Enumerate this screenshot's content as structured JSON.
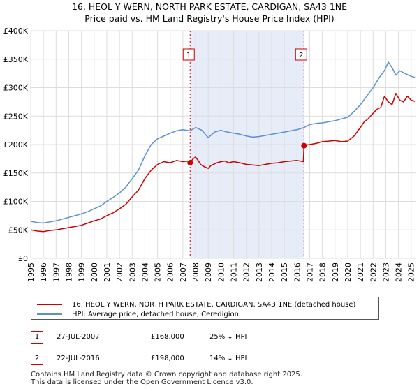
{
  "chart_title": {
    "line1": "16, HEOL Y WERN, NORTH PARK ESTATE, CARDIGAN, SA43 1NE",
    "line2": "Price paid vs. HM Land Registry's House Price Index (HPI)"
  },
  "chart_data": {
    "type": "line",
    "title": "16, HEOL Y WERN, NORTH PARK ESTATE, CARDIGAN, SA43 1NE — Price paid vs. HM Land Registry's House Price Index (HPI)",
    "xlabel": "",
    "ylabel": "",
    "xlim": [
      1995,
      2025.4
    ],
    "ylim": [
      0,
      400000
    ],
    "grid": true,
    "y_ticks": [
      0,
      50000,
      100000,
      150000,
      200000,
      250000,
      300000,
      350000,
      400000
    ],
    "y_tick_labels": [
      "£0",
      "£50K",
      "£100K",
      "£150K",
      "£200K",
      "£250K",
      "£300K",
      "£350K",
      "£400K"
    ],
    "x_ticks": [
      1995,
      1996,
      1997,
      1998,
      1999,
      2000,
      2001,
      2002,
      2003,
      2004,
      2005,
      2006,
      2007,
      2008,
      2009,
      2010,
      2011,
      2012,
      2013,
      2014,
      2015,
      2016,
      2017,
      2018,
      2019,
      2020,
      2021,
      2022,
      2023,
      2024,
      2025
    ],
    "shaded_period": [
      2007.57,
      2016.55
    ],
    "series": [
      {
        "name": "16, HEOL Y WERN, NORTH PARK ESTATE, CARDIGAN, SA43 1NE (detached house)",
        "color": "#cc0000",
        "x": [
          1995.0,
          1995.5,
          1996.0,
          1996.5,
          1997.0,
          1997.5,
          1998.0,
          1998.5,
          1999.0,
          1999.5,
          2000.0,
          2000.5,
          2001.0,
          2001.5,
          2002.0,
          2002.5,
          2003.0,
          2003.5,
          2004.0,
          2004.5,
          2005.0,
          2005.5,
          2006.0,
          2006.5,
          2007.0,
          2007.4,
          2007.57,
          2007.8,
          2008.0,
          2008.2,
          2008.4,
          2008.6,
          2008.8,
          2009.0,
          2009.2,
          2009.4,
          2009.7,
          2010.0,
          2010.3,
          2010.6,
          2011.0,
          2011.5,
          2012.0,
          2012.5,
          2013.0,
          2013.5,
          2014.0,
          2014.5,
          2015.0,
          2015.5,
          2016.0,
          2016.5,
          2016.55,
          2016.7,
          2017.0,
          2017.5,
          2018.0,
          2018.5,
          2019.0,
          2019.5,
          2020.0,
          2020.5,
          2021.0,
          2021.3,
          2021.6,
          2022.0,
          2022.3,
          2022.6,
          2022.9,
          2023.2,
          2023.5,
          2023.8,
          2024.1,
          2024.4,
          2024.7,
          2025.0,
          2025.3
        ],
        "values": [
          50000,
          48000,
          47000,
          49000,
          50000,
          52000,
          54000,
          56000,
          58000,
          62000,
          66000,
          69000,
          75000,
          80000,
          87000,
          95000,
          108000,
          120000,
          140000,
          155000,
          165000,
          170000,
          168000,
          172000,
          170000,
          171000,
          168000,
          175000,
          178000,
          172000,
          165000,
          162000,
          160000,
          158000,
          163000,
          165000,
          168000,
          170000,
          171000,
          168000,
          170000,
          168000,
          165000,
          164000,
          163000,
          165000,
          167000,
          168000,
          170000,
          171000,
          172000,
          170000,
          198000,
          199000,
          200000,
          202000,
          205000,
          206000,
          207000,
          205000,
          206000,
          215000,
          230000,
          240000,
          245000,
          255000,
          262000,
          265000,
          285000,
          275000,
          270000,
          290000,
          278000,
          275000,
          285000,
          278000,
          276000
        ]
      },
      {
        "name": "HPI: Average price, detached house, Ceredigion",
        "color": "#5b8fd0",
        "x": [
          1995.0,
          1995.5,
          1996.0,
          1996.5,
          1997.0,
          1997.5,
          1998.0,
          1998.5,
          1999.0,
          1999.5,
          2000.0,
          2000.5,
          2001.0,
          2001.5,
          2002.0,
          2002.5,
          2003.0,
          2003.5,
          2004.0,
          2004.5,
          2005.0,
          2005.5,
          2006.0,
          2006.5,
          2007.0,
          2007.57,
          2008.0,
          2008.5,
          2009.0,
          2009.5,
          2010.0,
          2010.5,
          2011.0,
          2011.5,
          2012.0,
          2012.5,
          2013.0,
          2013.5,
          2014.0,
          2014.5,
          2015.0,
          2015.5,
          2016.0,
          2016.55,
          2017.0,
          2017.5,
          2018.0,
          2018.5,
          2019.0,
          2019.5,
          2020.0,
          2020.5,
          2021.0,
          2021.5,
          2022.0,
          2022.5,
          2022.9,
          2023.2,
          2023.5,
          2023.8,
          2024.1,
          2024.5,
          2025.0,
          2025.3
        ],
        "values": [
          65000,
          63000,
          62000,
          64000,
          66000,
          69000,
          72000,
          75000,
          78000,
          82000,
          87000,
          92000,
          100000,
          107000,
          115000,
          125000,
          140000,
          155000,
          180000,
          200000,
          210000,
          215000,
          220000,
          224000,
          226000,
          224000,
          230000,
          225000,
          212000,
          222000,
          225000,
          222000,
          220000,
          218000,
          215000,
          213000,
          214000,
          216000,
          218000,
          220000,
          222000,
          224000,
          226000,
          230000,
          235000,
          237000,
          238000,
          240000,
          242000,
          245000,
          248000,
          258000,
          270000,
          285000,
          300000,
          318000,
          330000,
          345000,
          335000,
          322000,
          330000,
          325000,
          320000,
          318000
        ]
      }
    ],
    "sales": [
      {
        "label": "1",
        "x": 2007.57,
        "value": 168000
      },
      {
        "label": "2",
        "x": 2016.55,
        "value": 198000
      }
    ]
  },
  "legend": {
    "entries": [
      {
        "label": "16, HEOL Y WERN, NORTH PARK ESTATE, CARDIGAN, SA43 1NE (detached house)",
        "color": "#cc0000"
      },
      {
        "label": "HPI: Average price, detached house, Ceredigion",
        "color": "#5b8fd0"
      }
    ]
  },
  "sales_table": [
    {
      "num": "1",
      "date": "27-JUL-2007",
      "price": "£168,000",
      "hpi": "25% ↓ HPI"
    },
    {
      "num": "2",
      "date": "22-JUL-2016",
      "price": "£198,000",
      "hpi": "14% ↓ HPI"
    }
  ],
  "footer": {
    "line1": "Contains HM Land Registry data © Crown copyright and database right 2025.",
    "line2": "This data is licensed under the Open Government Licence v3.0."
  }
}
